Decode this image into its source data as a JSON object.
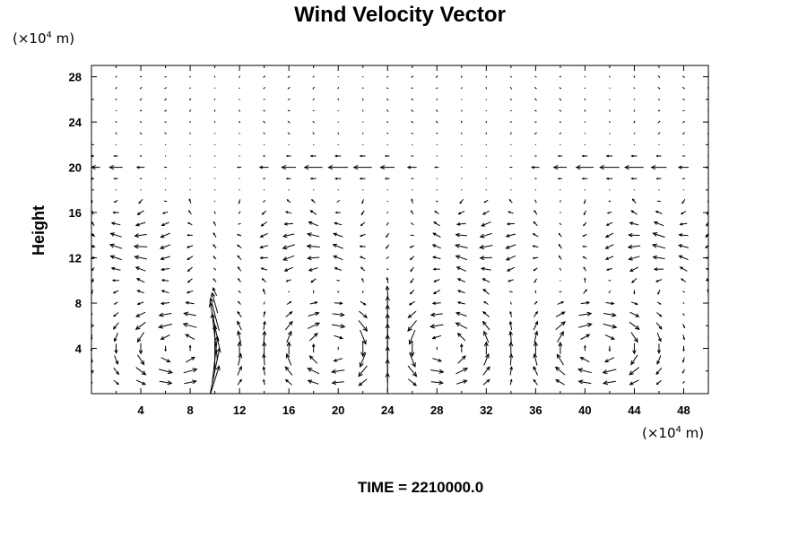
{
  "chart_data": {
    "type": "vector",
    "title": "Wind Velocity Vector",
    "ylabel": "Height",
    "y_unit": {
      "prefix": "(×10",
      "exponent": "4",
      "suffix": " m)"
    },
    "x_unit": {
      "prefix": "(×10",
      "exponent": "4",
      "suffix": " m)"
    },
    "xlim": [
      0,
      50
    ],
    "ylim": [
      0,
      29
    ],
    "xticks": [
      "4",
      "8",
      "12",
      "16",
      "20",
      "24",
      "28",
      "32",
      "36",
      "40",
      "44",
      "48"
    ],
    "yticks": [
      "4",
      "8",
      "12",
      "16",
      "20",
      "24",
      "28"
    ],
    "grid": {
      "dx": 2,
      "dy": 1,
      "x_start": 0,
      "y_start": 1
    },
    "circulation_cells_x": [
      7,
      20,
      28,
      41
    ],
    "updraft_x": [
      10,
      24
    ],
    "upper_jet_height": 20,
    "footer": "TIME = 2210000.0"
  }
}
